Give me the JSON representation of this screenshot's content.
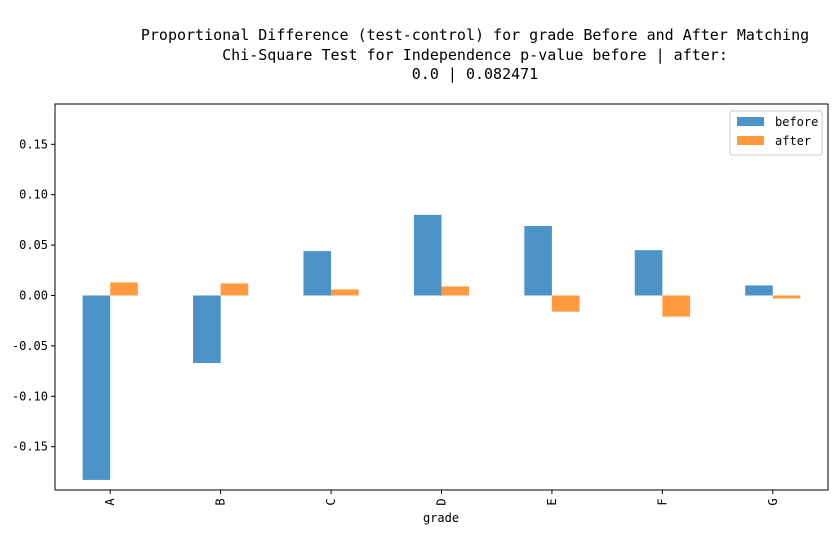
{
  "chart_data": {
    "type": "bar",
    "title_lines": [
      "Proportional Difference (test-control) for grade Before and After Matching",
      "Chi-Square Test for Independence p-value before | after:",
      "0.0 | 0.082471"
    ],
    "xlabel": "grade",
    "ylabel": "",
    "categories": [
      "A",
      "B",
      "C",
      "D",
      "E",
      "F",
      "G"
    ],
    "series": [
      {
        "name": "before",
        "color": "#4c94c8",
        "values": [
          -0.183,
          -0.067,
          0.044,
          0.08,
          0.069,
          0.045,
          0.01
        ]
      },
      {
        "name": "after",
        "color": "#ff9a3f",
        "values": [
          0.013,
          0.012,
          0.006,
          0.009,
          -0.016,
          -0.021,
          -0.003
        ]
      }
    ],
    "ylim": [
      -0.193,
      0.19
    ],
    "yticks": [
      -0.15,
      -0.1,
      -0.05,
      0.0,
      0.05,
      0.1,
      0.15
    ],
    "ytick_labels": [
      "-0.15",
      "-0.10",
      "-0.05",
      "0.00",
      "0.05",
      "0.10",
      "0.15"
    ],
    "grid": false,
    "legend_position": "top-right"
  }
}
